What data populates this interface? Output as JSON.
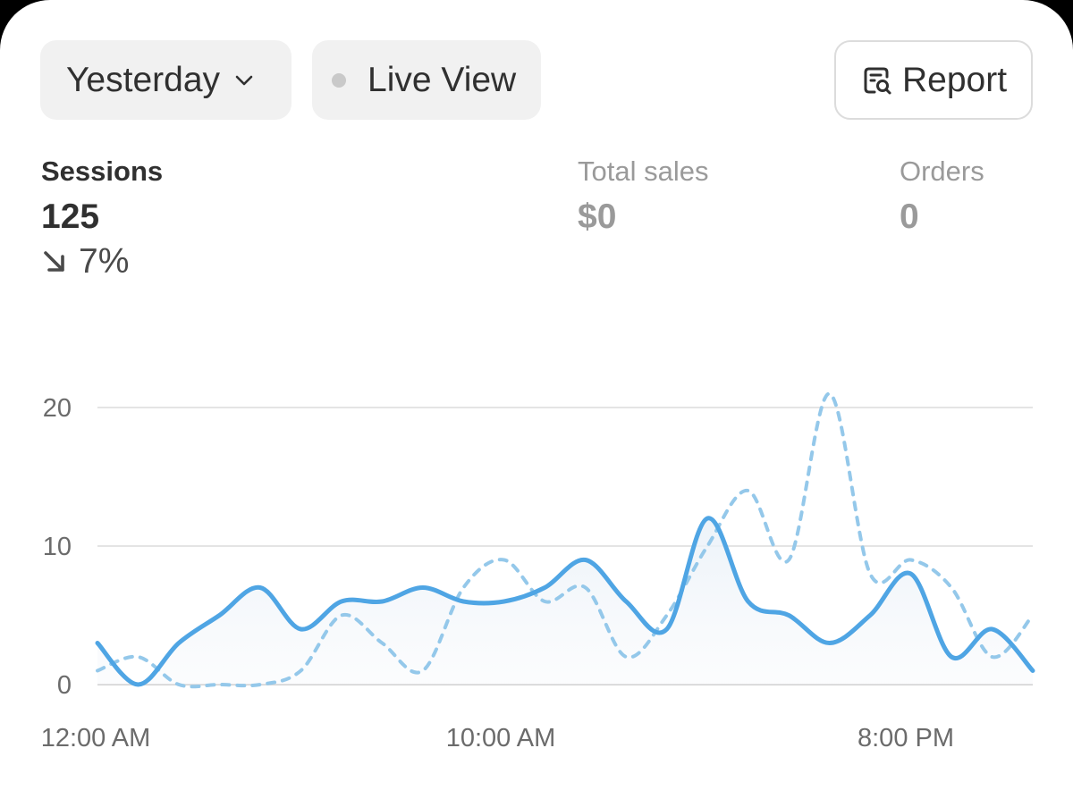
{
  "toolbar": {
    "date_range_label": "Yesterday",
    "live_view_label": "Live View",
    "report_label": "Report"
  },
  "metrics": {
    "sessions": {
      "label": "Sessions",
      "value": "125",
      "change": "7%",
      "change_direction": "down"
    },
    "total_sales": {
      "label": "Total sales",
      "value": "$0"
    },
    "orders": {
      "label": "Orders",
      "value": "0"
    }
  },
  "colors": {
    "primary_series": "#4fa5e4",
    "comparison_series": "#94c8ea",
    "muted_text": "#9a9a9a"
  },
  "chart_data": {
    "type": "line",
    "x_tick_labels": [
      "12:00 AM",
      "10:00 AM",
      "8:00 PM"
    ],
    "y_ticks": [
      0,
      10,
      20
    ],
    "ylim": [
      0,
      22
    ],
    "grid": true,
    "series": [
      {
        "style": "solid",
        "values": [
          3,
          0,
          3,
          5,
          7,
          4,
          6,
          6,
          7,
          6,
          6,
          7,
          9,
          6,
          4,
          12,
          6,
          5,
          3,
          5,
          8,
          2,
          4,
          1
        ]
      },
      {
        "style": "dashed",
        "values": [
          1,
          2,
          0,
          0,
          0,
          1,
          5,
          3,
          1,
          7,
          9,
          6,
          7,
          2,
          5,
          10,
          14,
          9,
          21,
          8,
          9,
          7,
          2,
          5
        ]
      }
    ]
  }
}
